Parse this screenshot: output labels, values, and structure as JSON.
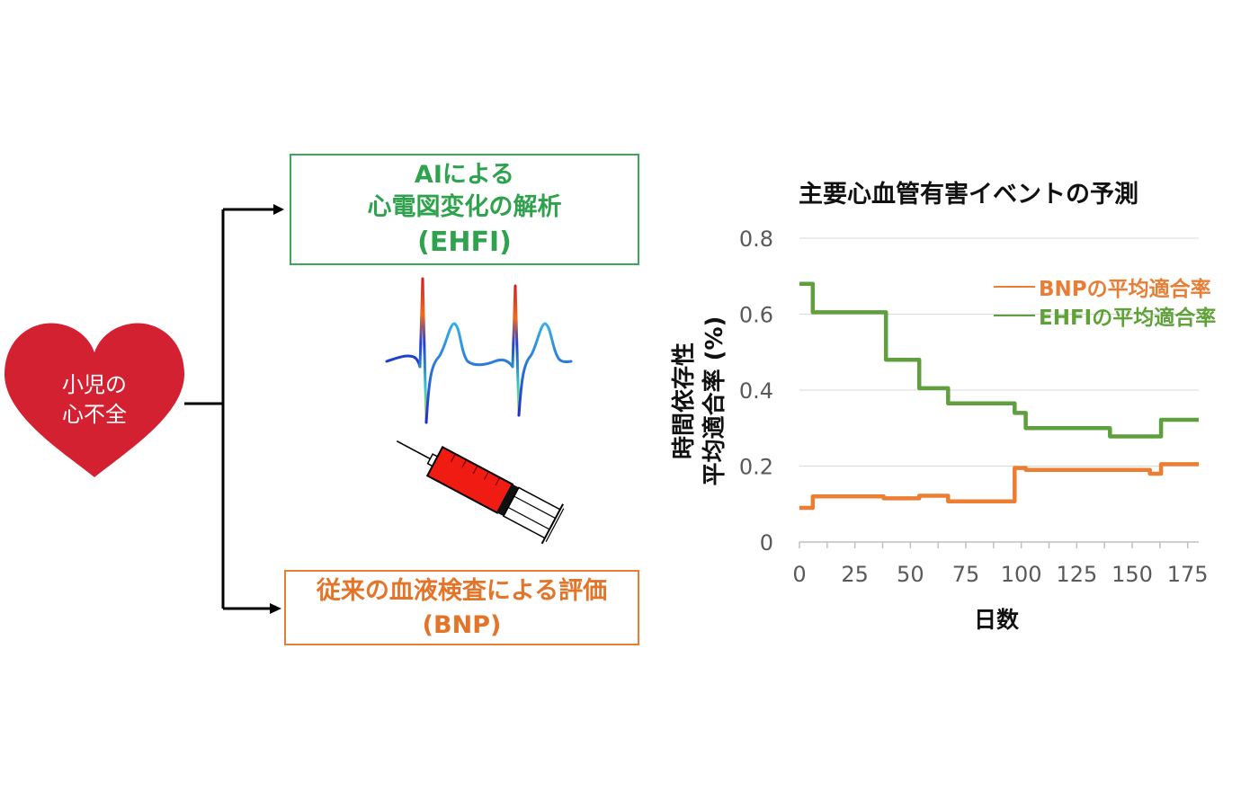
{
  "heart": {
    "label_line1": "小児の",
    "label_line2": "心不全",
    "color": "#d42132",
    "icon": "heart-icon"
  },
  "ai_box": {
    "line1": "AIによる",
    "line2": "心電図変化の解析",
    "line3": "(EHFI)",
    "color": "#2fa24d"
  },
  "bnp_box": {
    "line1": "従来の血液検査による評価",
    "line2": "(BNP)",
    "color": "#e3752a"
  },
  "icons": {
    "ecg": "ecg-waveform-icon",
    "syringe": "syringe-icon"
  },
  "chart_data": {
    "type": "line",
    "title": "主要心血管有害イベントの予測",
    "ylabel_line1": "時間依存性",
    "ylabel_line2": "平均適合率 (%)",
    "xlabel": "日数",
    "xlim": [
      0,
      180
    ],
    "ylim": [
      0,
      0.8
    ],
    "x_ticks": [
      0,
      25,
      50,
      75,
      100,
      125,
      150,
      175
    ],
    "y_ticks": [
      0,
      0.2,
      0.4,
      0.6,
      0.8
    ],
    "y_tick_labels": [
      "0",
      "0.2",
      "0.4",
      "0.6",
      "0.8"
    ],
    "grid": true,
    "legend_position": "top-right",
    "series": [
      {
        "name": "BNPの平均適合率",
        "color": "#ed7d31",
        "step_points": [
          [
            0,
            0.09
          ],
          [
            6,
            0.09
          ],
          [
            6,
            0.12
          ],
          [
            38,
            0.12
          ],
          [
            38,
            0.115
          ],
          [
            54,
            0.115
          ],
          [
            54,
            0.122
          ],
          [
            67,
            0.122
          ],
          [
            67,
            0.107
          ],
          [
            97,
            0.107
          ],
          [
            97,
            0.195
          ],
          [
            102,
            0.195
          ],
          [
            102,
            0.19
          ],
          [
            158,
            0.19
          ],
          [
            158,
            0.18
          ],
          [
            163,
            0.18
          ],
          [
            163,
            0.205
          ],
          [
            180,
            0.205
          ]
        ]
      },
      {
        "name": "EHFIの平均適合率",
        "color": "#5f9f3d",
        "step_points": [
          [
            0,
            0.68
          ],
          [
            6,
            0.68
          ],
          [
            6,
            0.605
          ],
          [
            39,
            0.605
          ],
          [
            39,
            0.48
          ],
          [
            54,
            0.48
          ],
          [
            54,
            0.405
          ],
          [
            67,
            0.405
          ],
          [
            67,
            0.365
          ],
          [
            97,
            0.365
          ],
          [
            97,
            0.34
          ],
          [
            102,
            0.34
          ],
          [
            102,
            0.3
          ],
          [
            140,
            0.3
          ],
          [
            140,
            0.278
          ],
          [
            163,
            0.278
          ],
          [
            163,
            0.322
          ],
          [
            180,
            0.322
          ]
        ]
      }
    ]
  }
}
